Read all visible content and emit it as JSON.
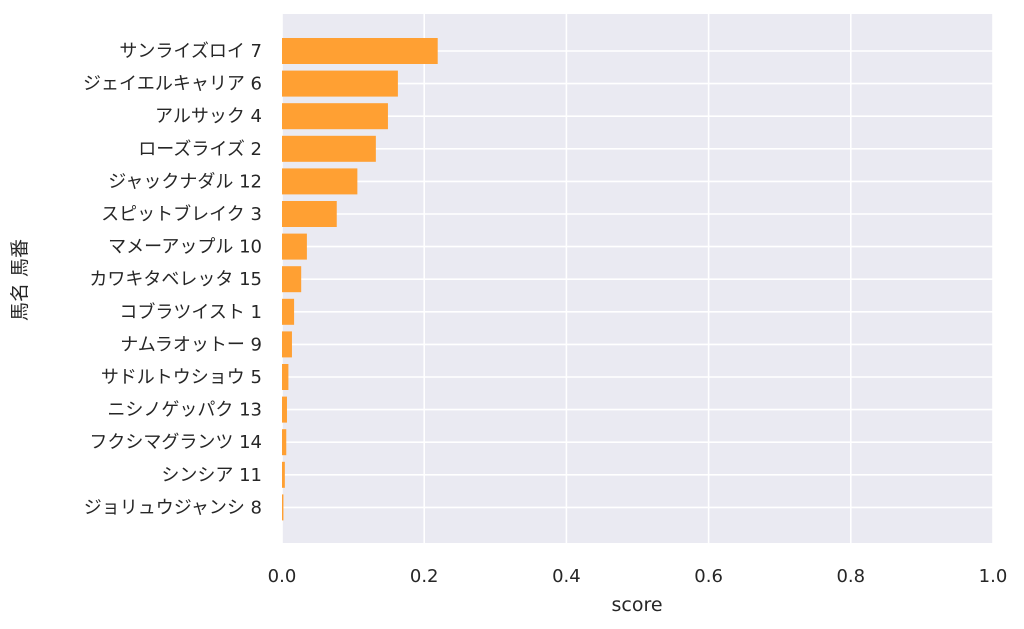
{
  "chart_data": {
    "type": "bar",
    "orientation": "horizontal",
    "title": "",
    "xlabel": "score",
    "ylabel": "馬名 馬番",
    "xlim": [
      0,
      1.0
    ],
    "xticks": [
      "0.0",
      "0.2",
      "0.4",
      "0.6",
      "0.8",
      "1.0"
    ],
    "grid": true,
    "bar_color": "#ffa033",
    "background_color": "#eaeaf2",
    "categories": [
      "サンライズロイ 7",
      "ジェイエルキャリア 6",
      "アルサック 4",
      "ローズライズ 2",
      "ジャックナダル 12",
      "スピットブレイク 3",
      "マメーアップル 10",
      "カワキタベレッタ 15",
      "コブラツイスト 1",
      "ナムラオットー 9",
      "サドルトウショウ 5",
      "ニシノゲッパク 13",
      "フクシマグランツ 14",
      "シンシア 11",
      "ジョリュウジャンシ 8"
    ],
    "values": [
      0.219,
      0.163,
      0.149,
      0.132,
      0.106,
      0.077,
      0.035,
      0.027,
      0.017,
      0.014,
      0.009,
      0.007,
      0.006,
      0.004,
      0.002
    ]
  }
}
